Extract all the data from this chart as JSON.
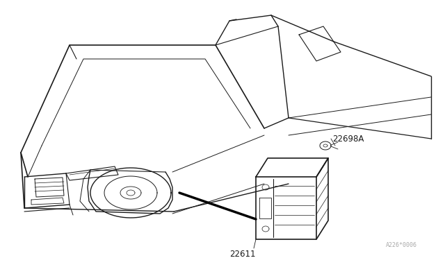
{
  "background_color": "#ffffff",
  "line_color": "#1a1a1a",
  "figsize": [
    6.4,
    3.72
  ],
  "dpi": 100,
  "watermark": "A226*0006",
  "label_22698A": "22698A",
  "label_22611": "22611"
}
